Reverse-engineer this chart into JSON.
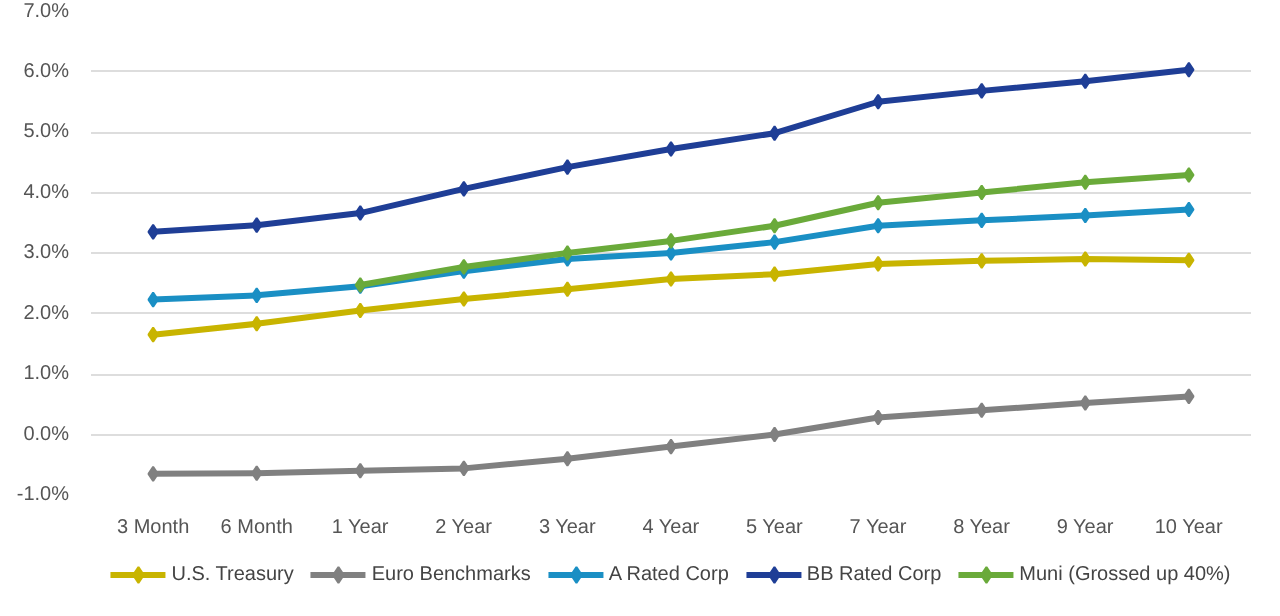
{
  "chart_data": {
    "type": "line",
    "categories": [
      "3 Month",
      "6 Month",
      "1 Year",
      "2 Year",
      "3 Year",
      "4 Year",
      "5 Year",
      "7 Year",
      "8 Year",
      "9 Year",
      "10 Year"
    ],
    "series": [
      {
        "name": "U.S. Treasury",
        "color": "#c8b400",
        "values": [
          1.65,
          1.83,
          2.05,
          2.24,
          2.4,
          2.57,
          2.65,
          2.82,
          2.87,
          2.9,
          2.88
        ]
      },
      {
        "name": "Euro Benchmarks",
        "color": "#808080",
        "values": [
          -0.65,
          -0.64,
          -0.6,
          -0.56,
          -0.4,
          -0.2,
          0.0,
          0.28,
          0.4,
          0.52,
          0.63
        ]
      },
      {
        "name": "A Rated Corp",
        "color": "#1a8fc4",
        "values": [
          2.23,
          2.3,
          2.45,
          2.7,
          2.9,
          3.0,
          3.18,
          3.45,
          3.54,
          3.62,
          3.72
        ]
      },
      {
        "name": "BB Rated Corp",
        "color": "#1f3e96",
        "values": [
          3.35,
          3.46,
          3.66,
          4.06,
          4.42,
          4.72,
          4.98,
          5.5,
          5.68,
          5.84,
          6.03
        ]
      },
      {
        "name": "Muni (Grossed up 40%)",
        "color": "#6aaa3a",
        "values": [
          null,
          null,
          2.47,
          2.77,
          3.0,
          3.2,
          3.45,
          3.83,
          4.0,
          4.17,
          4.29
        ]
      }
    ],
    "ylim": [
      -1,
      7
    ],
    "yticks": [
      {
        "value": -1,
        "label": "-1.0%"
      },
      {
        "value": 0,
        "label": "0.0%"
      },
      {
        "value": 1,
        "label": "1.0%"
      },
      {
        "value": 2,
        "label": "2.0%"
      },
      {
        "value": 3,
        "label": "3.0%"
      },
      {
        "value": 4,
        "label": "4.0%"
      },
      {
        "value": 5,
        "label": "5.0%"
      },
      {
        "value": 6,
        "label": "6.0%"
      },
      {
        "value": 7,
        "label": "7.0%"
      }
    ],
    "grid": "y",
    "legend": "bottom",
    "marker": "diamond",
    "line_style": "solid"
  }
}
